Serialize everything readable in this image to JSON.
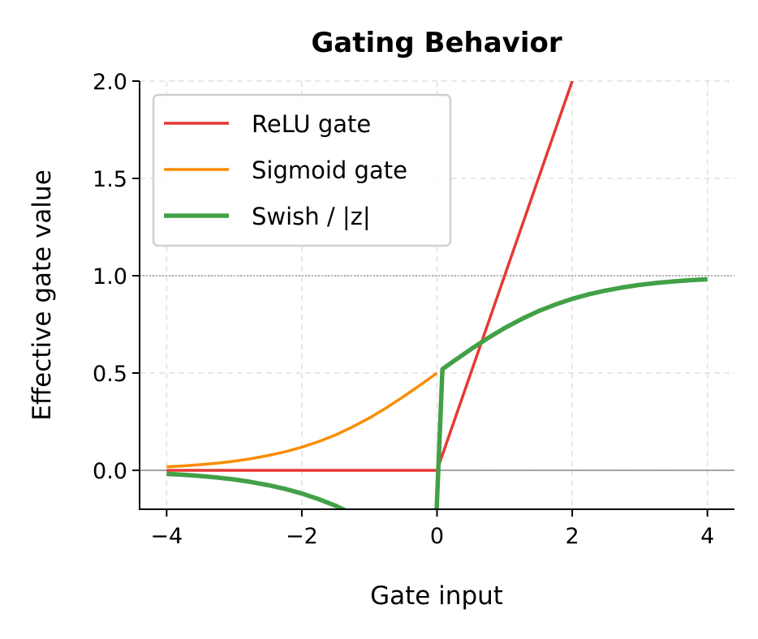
{
  "chart_data": {
    "type": "line",
    "title": "Gating Behavior",
    "xlabel": "Gate input",
    "ylabel": "Effective gate value",
    "xlim": [
      -4.4,
      4.4
    ],
    "ylim": [
      -0.2,
      2.0
    ],
    "xticks": [
      -4,
      -2,
      0,
      2,
      4
    ],
    "xtick_labels": [
      "−4",
      "−2",
      "0",
      "2",
      "4"
    ],
    "yticks": [
      0.0,
      0.5,
      1.0,
      1.5,
      2.0
    ],
    "ytick_labels": [
      "0.0",
      "0.5",
      "1.0",
      "1.5",
      "2.0"
    ],
    "grid": true,
    "legend_position": "top-left",
    "reference_lines": [
      {
        "y": 0,
        "style": "solid",
        "color": "#888888"
      },
      {
        "y": 1,
        "style": "dotted",
        "color": "#888888"
      }
    ],
    "series": [
      {
        "name": "ReLU gate",
        "color": "#e53935",
        "width": 3.5,
        "x": [
          -4,
          0,
          4
        ],
        "y": [
          0,
          0,
          4
        ]
      },
      {
        "name": "Sigmoid gate",
        "color": "#fb8c00",
        "width": 3.5,
        "x": [
          -4,
          -3.75,
          -3.5,
          -3.25,
          -3,
          -2.75,
          -2.5,
          -2.25,
          -2,
          -1.75,
          -1.5,
          -1.25,
          -1,
          -0.75,
          -0.5,
          -0.25,
          0
        ],
        "y": [
          0.018,
          0.023,
          0.029,
          0.037,
          0.047,
          0.06,
          0.076,
          0.095,
          0.119,
          0.148,
          0.182,
          0.223,
          0.269,
          0.321,
          0.378,
          0.438,
          0.5
        ]
      },
      {
        "name": "Swish / |z|",
        "color": "#43a047",
        "width": 5.5,
        "x": [
          -4,
          -3.75,
          -3.5,
          -3.25,
          -3,
          -2.75,
          -2.5,
          -2.25,
          -2,
          -1.75,
          -1.5,
          -1.25,
          -1,
          -0.75,
          -0.5,
          -0.25,
          -0.04,
          0.08,
          0.25,
          0.5,
          0.75,
          1,
          1.25,
          1.5,
          1.75,
          2,
          2.25,
          2.5,
          2.75,
          3,
          3.25,
          3.5,
          3.75,
          4
        ],
        "y": [
          -0.018,
          -0.023,
          -0.029,
          -0.037,
          -0.047,
          -0.06,
          -0.076,
          -0.095,
          -0.119,
          -0.148,
          -0.182,
          -0.223,
          -0.269,
          -0.321,
          -0.378,
          -0.438,
          -0.49,
          0.52,
          0.562,
          0.622,
          0.679,
          0.731,
          0.777,
          0.818,
          0.852,
          0.881,
          0.905,
          0.924,
          0.94,
          0.953,
          0.963,
          0.971,
          0.977,
          0.982
        ]
      }
    ]
  }
}
